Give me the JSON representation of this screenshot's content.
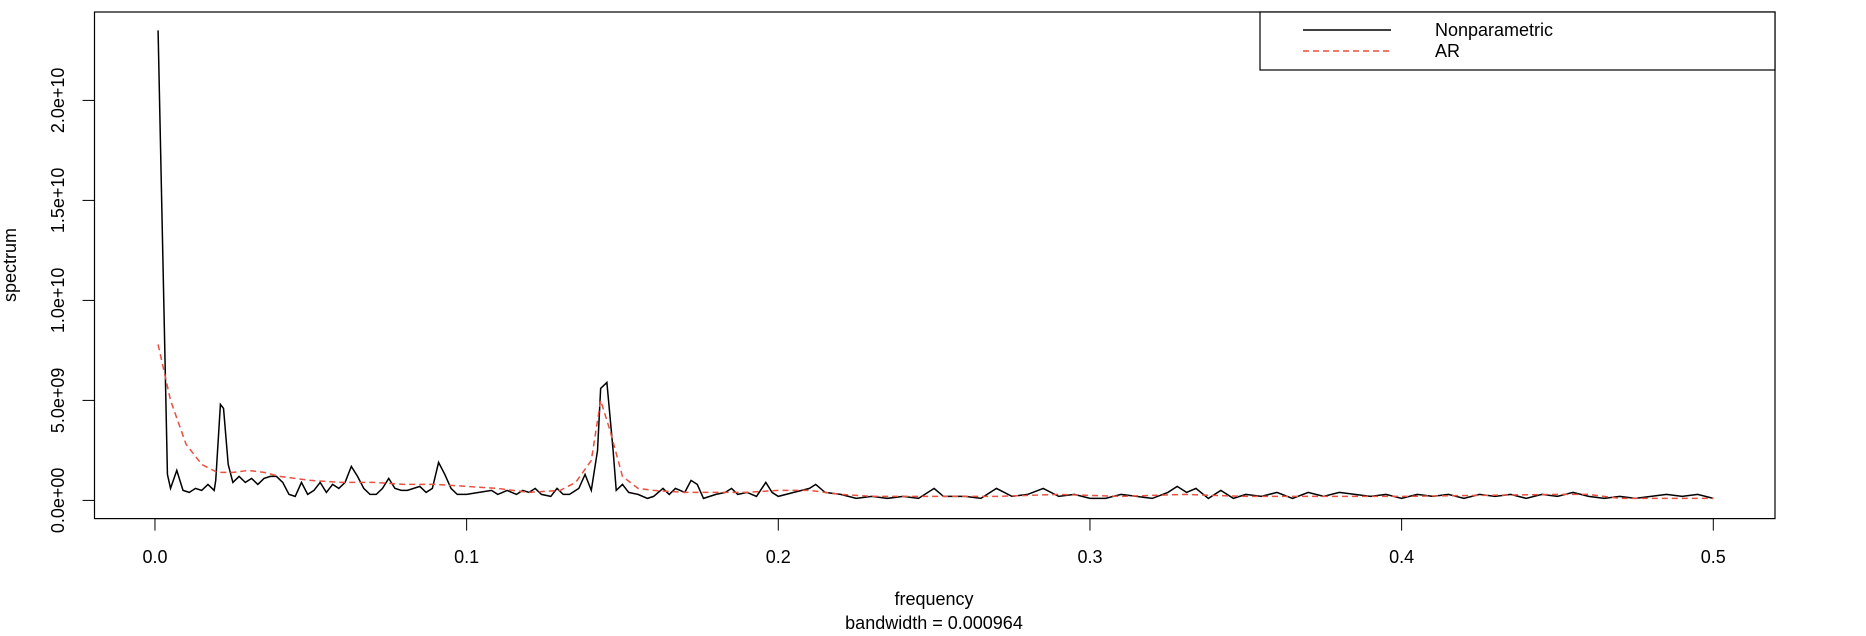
{
  "chart_data": {
    "type": "line",
    "xlabel": "frequency",
    "subtitle": "bandwidth = 0.000964",
    "ylabel": "spectrum",
    "xlim": [
      -0.0194,
      0.5198
    ],
    "ylim": [
      -910000000.0,
      24420000000.0
    ],
    "xticks": [
      {
        "value": 0,
        "label": "0.0"
      },
      0.1,
      0.2,
      0.3,
      0.4,
      0.5
    ],
    "yticks": [
      {
        "value": 0,
        "label": "0.0e+00"
      },
      {
        "value": 5000000000.0,
        "label": "5.0e+09"
      },
      {
        "value": 10000000000.0,
        "label": "1.0e+10"
      },
      {
        "value": 15000000000.0,
        "label": "1.5e+10"
      },
      {
        "value": 20000000000.0,
        "label": "2.0e+10"
      }
    ],
    "legend": "topright",
    "series": [
      {
        "name": "Nonparametric",
        "color": "#000000",
        "dash": false,
        "x": [
          0.001,
          0.004,
          0.005,
          0.007,
          0.009,
          0.011,
          0.013,
          0.015,
          0.017,
          0.019,
          0.0195,
          0.021,
          0.022,
          0.0235,
          0.025,
          0.027,
          0.029,
          0.031,
          0.033,
          0.035,
          0.037,
          0.039,
          0.041,
          0.043,
          0.045,
          0.047,
          0.049,
          0.051,
          0.053,
          0.055,
          0.057,
          0.059,
          0.061,
          0.063,
          0.065,
          0.067,
          0.069,
          0.071,
          0.073,
          0.075,
          0.077,
          0.079,
          0.081,
          0.083,
          0.085,
          0.087,
          0.089,
          0.091,
          0.093,
          0.095,
          0.097,
          0.1,
          0.104,
          0.108,
          0.11,
          0.113,
          0.116,
          0.118,
          0.12,
          0.122,
          0.124,
          0.127,
          0.129,
          0.131,
          0.133,
          0.136,
          0.138,
          0.14,
          0.142,
          0.143,
          0.145,
          0.147,
          0.148,
          0.15,
          0.152,
          0.155,
          0.158,
          0.16,
          0.163,
          0.165,
          0.167,
          0.17,
          0.172,
          0.174,
          0.176,
          0.18,
          0.183,
          0.185,
          0.187,
          0.19,
          0.193,
          0.196,
          0.198,
          0.2,
          0.205,
          0.21,
          0.212,
          0.215,
          0.22,
          0.225,
          0.23,
          0.235,
          0.24,
          0.245,
          0.25,
          0.253,
          0.26,
          0.265,
          0.27,
          0.275,
          0.28,
          0.285,
          0.29,
          0.295,
          0.3,
          0.305,
          0.31,
          0.315,
          0.32,
          0.325,
          0.328,
          0.331,
          0.334,
          0.338,
          0.342,
          0.346,
          0.35,
          0.355,
          0.36,
          0.365,
          0.37,
          0.375,
          0.38,
          0.385,
          0.39,
          0.395,
          0.4,
          0.405,
          0.41,
          0.415,
          0.42,
          0.425,
          0.43,
          0.435,
          0.44,
          0.445,
          0.45,
          0.455,
          0.46,
          0.465,
          0.47,
          0.475,
          0.48,
          0.485,
          0.49,
          0.495,
          0.5
        ],
        "values": [
          23500000000.0,
          1300000000.0,
          600000000.0,
          1500000000.0,
          500000000.0,
          400000000.0,
          600000000.0,
          500000000.0,
          800000000.0,
          500000000.0,
          1000000000.0,
          4800000000.0,
          4600000000.0,
          1800000000.0,
          900000000.0,
          1200000000.0,
          900000000.0,
          1100000000.0,
          800000000.0,
          1100000000.0,
          1200000000.0,
          1200000000.0,
          900000000.0,
          300000000.0,
          200000000.0,
          900000000.0,
          300000000.0,
          500000000.0,
          900000000.0,
          400000000.0,
          800000000.0,
          600000000.0,
          900000000.0,
          1700000000.0,
          1200000000.0,
          600000000.0,
          300000000.0,
          300000000.0,
          600000000.0,
          1100000000.0,
          600000000.0,
          500000000.0,
          500000000.0,
          600000000.0,
          700000000.0,
          400000000.0,
          600000000.0,
          1900000000.0,
          1300000000.0,
          600000000.0,
          300000000.0,
          300000000.0,
          400000000.0,
          500000000.0,
          300000000.0,
          500000000.0,
          300000000.0,
          500000000.0,
          400000000.0,
          600000000.0,
          300000000.0,
          200000000.0,
          600000000.0,
          300000000.0,
          300000000.0,
          600000000.0,
          1300000000.0,
          500000000.0,
          2500000000.0,
          5600000000.0,
          5900000000.0,
          2500000000.0,
          500000000.0,
          800000000.0,
          400000000.0,
          300000000.0,
          100000000.0,
          200000000.0,
          600000000.0,
          300000000.0,
          600000000.0,
          400000000.0,
          1000000000.0,
          800000000.0,
          100000000.0,
          300000000.0,
          400000000.0,
          600000000.0,
          300000000.0,
          400000000.0,
          200000000.0,
          900000000.0,
          400000000.0,
          200000000.0,
          400000000.0,
          600000000.0,
          800000000.0,
          400000000.0,
          300000000.0,
          100000000.0,
          200000000.0,
          100000000.0,
          200000000.0,
          100000000.0,
          600000000.0,
          200000000.0,
          200000000.0,
          100000000.0,
          600000000.0,
          200000000.0,
          300000000.0,
          600000000.0,
          200000000.0,
          300000000.0,
          100000000.0,
          100000000.0,
          300000000.0,
          200000000.0,
          100000000.0,
          400000000.0,
          700000000.0,
          400000000.0,
          600000000.0,
          100000000.0,
          500000000.0,
          100000000.0,
          300000000.0,
          200000000.0,
          400000000.0,
          100000000.0,
          400000000.0,
          200000000.0,
          400000000.0,
          300000000.0,
          200000000.0,
          300000000.0,
          100000000.0,
          300000000.0,
          200000000.0,
          300000000.0,
          100000000.0,
          300000000.0,
          200000000.0,
          300000000.0,
          100000000.0,
          300000000.0,
          200000000.0,
          400000000.0,
          200000000.0,
          100000000.0,
          200000000.0,
          100000000.0,
          200000000.0,
          300000000.0,
          200000000.0,
          300000000.0,
          100000000.0
        ]
      },
      {
        "name": "AR",
        "color": "#e8503f",
        "dash": true,
        "x": [
          0.001,
          0.005,
          0.01,
          0.015,
          0.02,
          0.025,
          0.03,
          0.035,
          0.04,
          0.05,
          0.06,
          0.07,
          0.08,
          0.09,
          0.1,
          0.11,
          0.12,
          0.13,
          0.135,
          0.14,
          0.143,
          0.146,
          0.15,
          0.155,
          0.16,
          0.17,
          0.18,
          0.19,
          0.2,
          0.21,
          0.22,
          0.23,
          0.25,
          0.27,
          0.29,
          0.31,
          0.33,
          0.35,
          0.4,
          0.45,
          0.46,
          0.47,
          0.5
        ],
        "values": [
          7800000000.0,
          5000000000.0,
          2800000000.0,
          1800000000.0,
          1400000000.0,
          1400000000.0,
          1500000000.0,
          1400000000.0,
          1200000000.0,
          1000000000.0,
          900000000.0,
          900000000.0,
          800000000.0,
          800000000.0,
          700000000.0,
          600000000.0,
          400000000.0,
          500000000.0,
          900000000.0,
          2000000000.0,
          5000000000.0,
          3500000000.0,
          1200000000.0,
          600000000.0,
          500000000.0,
          400000000.0,
          400000000.0,
          400000000.0,
          500000000.0,
          500000000.0,
          300000000.0,
          200000000.0,
          200000000.0,
          200000000.0,
          300000000.0,
          200000000.0,
          300000000.0,
          200000000.0,
          200000000.0,
          300000000.0,
          300000000.0,
          100000000.0,
          100000000.0
        ]
      }
    ]
  }
}
